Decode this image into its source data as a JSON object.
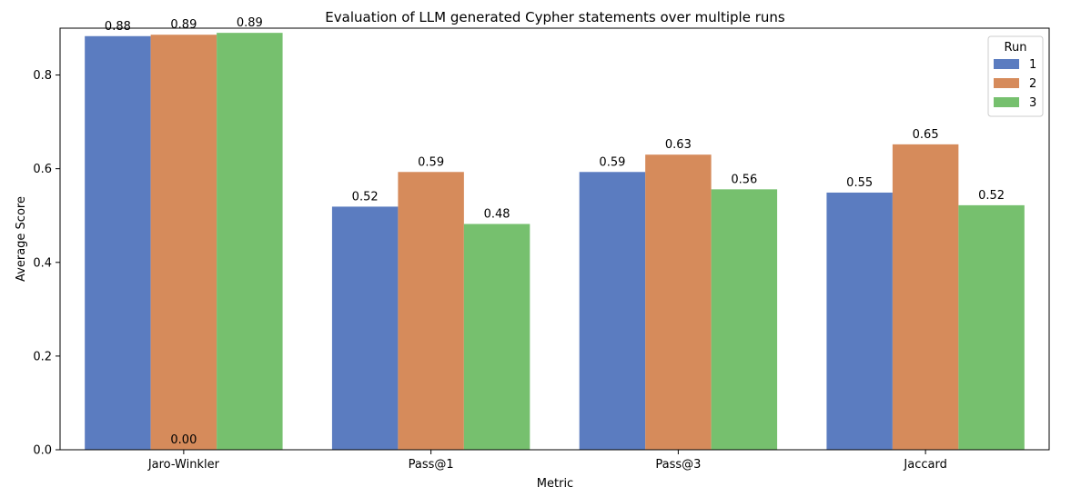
{
  "chart_data": {
    "type": "bar",
    "title": "Evaluation of LLM generated Cypher statements over multiple runs",
    "xlabel": "Metric",
    "ylabel": "Average Score",
    "categories": [
      "Jaro-Winkler",
      "Pass@1",
      "Pass@3",
      "Jaccard"
    ],
    "ylim": [
      0,
      0.9
    ],
    "yticks": [
      0.0,
      0.2,
      0.4,
      0.6,
      0.8
    ],
    "ytick_labels": [
      "0.0",
      "0.2",
      "0.4",
      "0.6",
      "0.8"
    ],
    "grid": false,
    "legend": {
      "title": "Run",
      "placement": "top-right"
    },
    "series": [
      {
        "name": "1",
        "color": "#5b7cc0",
        "values": [
          0.883,
          0.519,
          0.593,
          0.549
        ],
        "labels": [
          "0.88",
          "0.52",
          "0.59",
          "0.55"
        ]
      },
      {
        "name": "2",
        "color": "#d68b5b",
        "values": [
          0.886,
          0.593,
          0.63,
          0.652
        ],
        "labels": [
          "0.89",
          "0.59",
          "0.63",
          "0.65"
        ]
      },
      {
        "name": "3",
        "color": "#76c06e",
        "values": [
          0.89,
          0.482,
          0.556,
          0.522
        ],
        "labels": [
          "0.89",
          "0.48",
          "0.56",
          "0.52"
        ]
      }
    ],
    "annotations": [
      {
        "text": "0.00",
        "category": "Jaro-Winkler",
        "series": "2",
        "y": 0.0
      }
    ]
  }
}
